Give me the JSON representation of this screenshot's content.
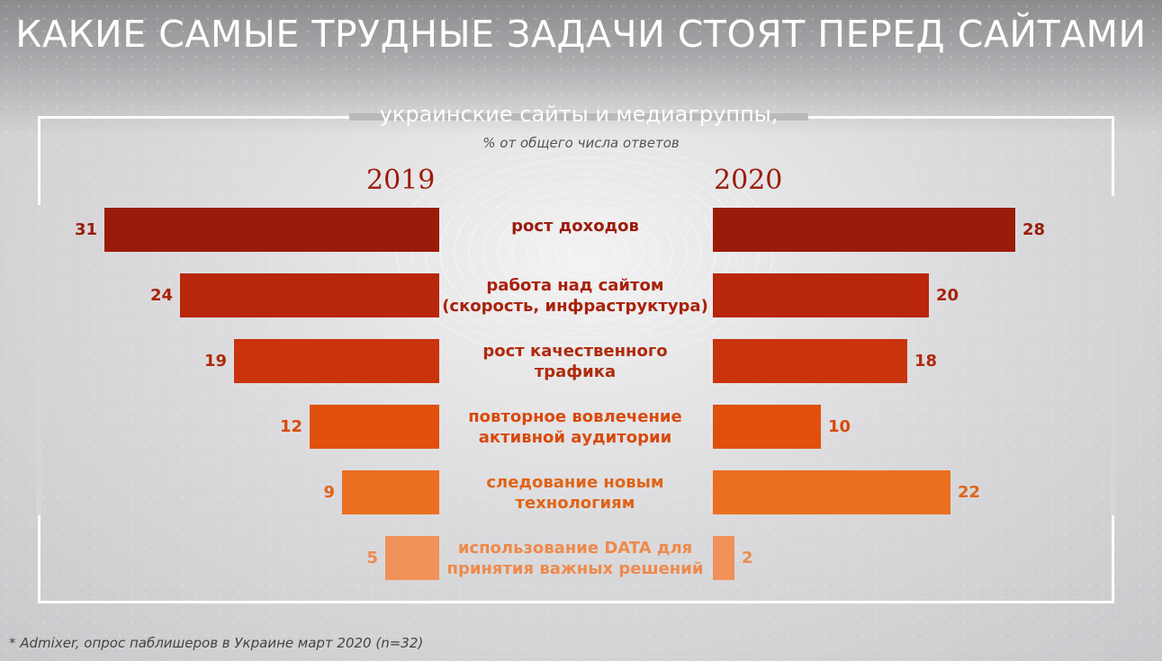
{
  "title": "КАКИЕ САМЫЕ ТРУДНЫЕ ЗАДАЧИ СТОЯТ ПЕРЕД САЙТАМИ",
  "footnote": "* Admixer, опрос паблишеров в Украине март 2020 (n=32)",
  "colors": [
    "#9b1b0a",
    "#b8260c",
    "#c9340d",
    "#e0500c",
    "#ea6f20",
    "#f0925a"
  ],
  "chart_data": {
    "type": "bar",
    "title": "украинские сайты и медиагруппы,",
    "subtitle": "% от общего числа ответов",
    "categories": [
      "рост доходов",
      "работа над сайтом (скорость, инфраструктура)",
      "рост качественного трафика",
      "повторное вовлечение активной аудитории",
      "следование новым технологиям",
      "использование DATA для принятия важных решений"
    ],
    "category_lines": [
      [
        "рост доходов"
      ],
      [
        "работа над сайтом",
        "(скорость, инфраструктура)"
      ],
      [
        "рост качественного",
        "трафика"
      ],
      [
        "повторное вовлечение",
        "активной аудитории"
      ],
      [
        "следование новым",
        "технологиям"
      ],
      [
        "использование DATA для",
        "принятия важных решений"
      ]
    ],
    "series": [
      {
        "name": "2019",
        "values": [
          31,
          24,
          19,
          12,
          9,
          5
        ]
      },
      {
        "name": "2020",
        "values": [
          28,
          20,
          18,
          10,
          22,
          2
        ]
      }
    ],
    "xlim": [
      0,
      31
    ]
  }
}
